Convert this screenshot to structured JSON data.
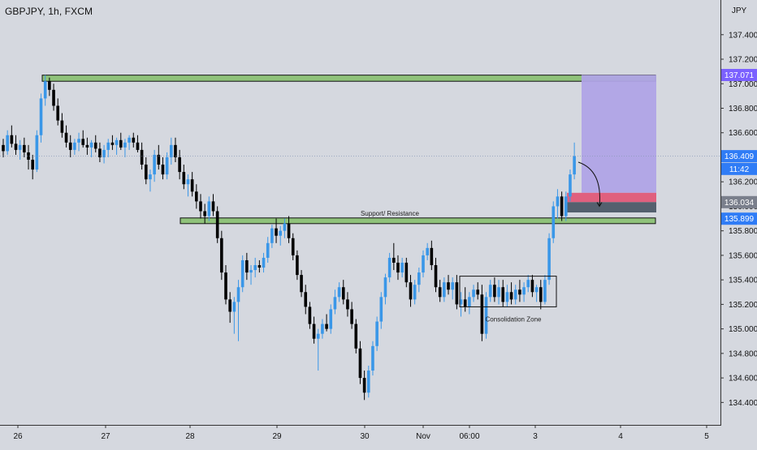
{
  "header": {
    "symbol_title": "GBPJPY, 1h, FXCM"
  },
  "colors": {
    "background": "#d5d8df",
    "up_candle": "#3a97e8",
    "down_candle": "#000000",
    "zone_fill": "#8fc27a",
    "zone_stroke": "#111111",
    "target_fill": "#b0a4e6",
    "stop_fill": "#e0607e",
    "entry_fill": "#54606e",
    "price_tag_purple": "#7b61ff",
    "price_tag_blue": "#2f7cf6",
    "price_tag_grey": "#7a7f8c"
  },
  "chart_data": {
    "type": "candlestick",
    "title": "GBPJPY, 1h, FXCM",
    "currency_label": "JPY",
    "ylim": [
      134.27,
      137.63
    ],
    "y_ticks": [
      "134.400",
      "134.600",
      "134.800",
      "135.000",
      "135.200",
      "135.400",
      "135.600",
      "135.800",
      "136.000",
      "136.200",
      "136.400",
      "136.600",
      "136.800",
      "137.000",
      "137.200",
      "137.400"
    ],
    "x_ticks": [
      "26",
      "27",
      "28",
      "29",
      "30",
      "Nov",
      "06:00",
      "3",
      "4",
      "5"
    ],
    "price_tags": [
      {
        "label": "137.071",
        "value": 137.071,
        "style": "purple"
      },
      {
        "label": "136.409",
        "value": 136.409,
        "style": "blue"
      },
      {
        "label": "11:42",
        "value": 136.305,
        "style": "blue"
      },
      {
        "label": "136.034",
        "value": 136.034,
        "style": "grey"
      },
      {
        "label": "135.899",
        "value": 135.899,
        "style": "blue"
      }
    ],
    "zones": [
      {
        "label": "",
        "top": 137.07,
        "bottom": 137.02
      },
      {
        "label": "Support/ Resistance",
        "top": 135.905,
        "bottom": 135.86
      }
    ],
    "consolidation_zone": {
      "label": "Consolidation Zone",
      "top": 135.43,
      "bottom": 135.18
    },
    "position": {
      "target": 137.071,
      "stop_top": 136.11,
      "stop_bottom": 136.034,
      "entry": 136.034,
      "entry_bottom": 135.95
    },
    "current_price": 136.409,
    "candles": [
      [
        136.5,
        136.55,
        136.4,
        136.45
      ],
      [
        136.45,
        136.62,
        136.42,
        136.58
      ],
      [
        136.58,
        136.66,
        136.48,
        136.51
      ],
      [
        136.51,
        136.58,
        136.42,
        136.46
      ],
      [
        136.46,
        136.54,
        136.38,
        136.5
      ],
      [
        136.5,
        136.56,
        136.4,
        136.44
      ],
      [
        136.44,
        136.5,
        136.3,
        136.38
      ],
      [
        136.38,
        136.42,
        136.22,
        136.3
      ],
      [
        136.3,
        136.62,
        136.28,
        136.58
      ],
      [
        136.58,
        136.92,
        136.52,
        136.88
      ],
      [
        136.88,
        137.07,
        136.82,
        137.02
      ],
      [
        137.02,
        137.05,
        136.9,
        136.95
      ],
      [
        136.95,
        137.0,
        136.78,
        136.82
      ],
      [
        136.82,
        136.88,
        136.66,
        136.7
      ],
      [
        136.7,
        136.76,
        136.56,
        136.6
      ],
      [
        136.6,
        136.66,
        136.48,
        136.52
      ],
      [
        136.52,
        136.58,
        136.4,
        136.46
      ],
      [
        136.46,
        136.55,
        136.42,
        136.52
      ],
      [
        136.52,
        136.6,
        136.45,
        136.55
      ],
      [
        136.55,
        136.62,
        136.48,
        136.5
      ],
      [
        136.5,
        136.56,
        136.42,
        136.48
      ],
      [
        136.48,
        136.54,
        136.4,
        136.52
      ],
      [
        136.52,
        136.58,
        136.44,
        136.47
      ],
      [
        136.47,
        136.52,
        136.36,
        136.4
      ],
      [
        136.4,
        136.5,
        136.35,
        136.46
      ],
      [
        136.46,
        136.55,
        136.4,
        136.52
      ],
      [
        136.52,
        136.58,
        136.46,
        136.5
      ],
      [
        136.5,
        136.56,
        136.42,
        136.54
      ],
      [
        136.54,
        136.6,
        136.46,
        136.48
      ],
      [
        136.48,
        136.55,
        136.4,
        136.52
      ],
      [
        136.52,
        136.58,
        136.46,
        136.56
      ],
      [
        136.56,
        136.6,
        136.48,
        136.52
      ],
      [
        136.52,
        136.58,
        136.44,
        136.46
      ],
      [
        136.46,
        136.52,
        136.3,
        136.34
      ],
      [
        136.34,
        136.4,
        136.18,
        136.22
      ],
      [
        136.22,
        136.3,
        136.12,
        136.26
      ],
      [
        136.26,
        136.46,
        136.2,
        136.42
      ],
      [
        136.42,
        136.5,
        136.3,
        136.34
      ],
      [
        136.34,
        136.4,
        136.22,
        136.26
      ],
      [
        136.26,
        136.44,
        136.22,
        136.4
      ],
      [
        136.4,
        136.56,
        136.34,
        136.5
      ],
      [
        136.5,
        136.56,
        136.36,
        136.4
      ],
      [
        136.4,
        136.46,
        136.22,
        136.28
      ],
      [
        136.28,
        136.34,
        136.14,
        136.18
      ],
      [
        136.18,
        136.26,
        136.08,
        136.22
      ],
      [
        136.22,
        136.28,
        136.08,
        136.12
      ],
      [
        136.12,
        136.18,
        135.98,
        136.04
      ],
      [
        136.04,
        136.1,
        135.9,
        135.96
      ],
      [
        135.96,
        136.02,
        135.86,
        135.92
      ],
      [
        135.92,
        136.08,
        135.88,
        136.04
      ],
      [
        136.04,
        136.1,
        135.92,
        135.96
      ],
      [
        135.96,
        136.0,
        135.7,
        135.74
      ],
      [
        135.74,
        135.8,
        135.4,
        135.46
      ],
      [
        135.46,
        135.52,
        135.2,
        135.24
      ],
      [
        135.24,
        135.3,
        135.05,
        135.14
      ],
      [
        135.14,
        135.26,
        134.96,
        135.22
      ],
      [
        135.22,
        135.4,
        134.9,
        135.34
      ],
      [
        135.34,
        135.6,
        135.3,
        135.56
      ],
      [
        135.56,
        135.62,
        135.4,
        135.46
      ],
      [
        135.46,
        135.52,
        135.36,
        135.48
      ],
      [
        135.48,
        135.58,
        135.42,
        135.52
      ],
      [
        135.52,
        135.56,
        135.46,
        135.5
      ],
      [
        135.5,
        135.62,
        135.46,
        135.58
      ],
      [
        135.58,
        135.75,
        135.54,
        135.7
      ],
      [
        135.7,
        135.85,
        135.66,
        135.82
      ],
      [
        135.82,
        135.9,
        135.7,
        135.76
      ],
      [
        135.76,
        135.84,
        135.68,
        135.8
      ],
      [
        135.8,
        135.9,
        135.74,
        135.86
      ],
      [
        135.86,
        135.92,
        135.7,
        135.74
      ],
      [
        135.74,
        135.78,
        135.56,
        135.6
      ],
      [
        135.6,
        135.64,
        135.4,
        135.44
      ],
      [
        135.44,
        135.48,
        135.26,
        135.3
      ],
      [
        135.3,
        135.36,
        135.12,
        135.18
      ],
      [
        135.18,
        135.22,
        135.0,
        135.04
      ],
      [
        135.04,
        135.1,
        134.88,
        134.92
      ],
      [
        134.92,
        135.0,
        134.66,
        134.96
      ],
      [
        134.96,
        135.08,
        134.92,
        135.04
      ],
      [
        135.04,
        135.12,
        134.98,
        135.0
      ],
      [
        135.0,
        135.2,
        134.96,
        135.16
      ],
      [
        135.16,
        135.32,
        135.12,
        135.26
      ],
      [
        135.26,
        135.38,
        135.22,
        135.34
      ],
      [
        135.34,
        135.4,
        135.2,
        135.24
      ],
      [
        135.24,
        135.3,
        135.1,
        135.16
      ],
      [
        135.16,
        135.22,
        135.0,
        135.04
      ],
      [
        135.04,
        135.08,
        134.8,
        134.84
      ],
      [
        134.84,
        134.9,
        134.55,
        134.6
      ],
      [
        134.6,
        134.66,
        134.42,
        134.48
      ],
      [
        134.48,
        134.7,
        134.44,
        134.66
      ],
      [
        134.66,
        134.9,
        134.62,
        134.86
      ],
      [
        134.86,
        135.1,
        134.82,
        135.06
      ],
      [
        135.06,
        135.3,
        135.0,
        135.26
      ],
      [
        135.26,
        135.45,
        135.2,
        135.42
      ],
      [
        135.42,
        135.62,
        135.38,
        135.58
      ],
      [
        135.58,
        135.7,
        135.48,
        135.54
      ],
      [
        135.54,
        135.6,
        135.4,
        135.46
      ],
      [
        135.46,
        135.58,
        135.42,
        135.54
      ],
      [
        135.54,
        135.58,
        135.34,
        135.38
      ],
      [
        135.38,
        135.44,
        135.18,
        135.24
      ],
      [
        135.24,
        135.4,
        135.2,
        135.36
      ],
      [
        135.36,
        135.5,
        135.3,
        135.46
      ],
      [
        135.46,
        135.64,
        135.42,
        135.6
      ],
      [
        135.6,
        135.7,
        135.56,
        135.66
      ],
      [
        135.66,
        135.72,
        135.48,
        135.52
      ],
      [
        135.52,
        135.58,
        135.3,
        135.34
      ],
      [
        135.34,
        135.4,
        135.22,
        135.26
      ],
      [
        135.26,
        135.42,
        135.22,
        135.38
      ],
      [
        135.38,
        135.44,
        135.28,
        135.32
      ],
      [
        135.32,
        135.42,
        135.24,
        135.38
      ],
      [
        135.38,
        135.44,
        135.16,
        135.2
      ],
      [
        135.2,
        135.3,
        135.1,
        135.24
      ],
      [
        135.24,
        135.34,
        135.14,
        135.18
      ],
      [
        135.18,
        135.3,
        135.12,
        135.26
      ],
      [
        135.26,
        135.36,
        135.22,
        135.32
      ],
      [
        135.32,
        135.38,
        135.24,
        135.28
      ],
      [
        135.28,
        135.36,
        134.9,
        134.96
      ],
      [
        134.96,
        135.3,
        134.92,
        135.26
      ],
      [
        135.26,
        135.4,
        135.22,
        135.36
      ],
      [
        135.36,
        135.42,
        135.22,
        135.26
      ],
      [
        135.26,
        135.4,
        135.2,
        135.34
      ],
      [
        135.34,
        135.4,
        135.18,
        135.22
      ],
      [
        135.22,
        135.36,
        135.18,
        135.3
      ],
      [
        135.3,
        135.38,
        135.2,
        135.24
      ],
      [
        135.24,
        135.36,
        135.2,
        135.32
      ],
      [
        135.32,
        135.4,
        135.22,
        135.28
      ],
      [
        135.28,
        135.38,
        135.22,
        135.34
      ],
      [
        135.34,
        135.44,
        135.3,
        135.4
      ],
      [
        135.4,
        135.44,
        135.26,
        135.3
      ],
      [
        135.3,
        135.36,
        135.22,
        135.34
      ],
      [
        135.34,
        135.4,
        135.16,
        135.22
      ],
      [
        135.22,
        135.44,
        135.2,
        135.4
      ],
      [
        135.4,
        135.78,
        135.36,
        135.74
      ],
      [
        135.74,
        136.04,
        135.7,
        136.0
      ],
      [
        136.0,
        136.14,
        135.9,
        136.08
      ],
      [
        136.08,
        136.12,
        135.88,
        135.92
      ],
      [
        135.92,
        136.12,
        135.88,
        136.08
      ],
      [
        136.08,
        136.3,
        136.04,
        136.26
      ],
      [
        136.26,
        136.52,
        136.22,
        136.41
      ]
    ]
  }
}
